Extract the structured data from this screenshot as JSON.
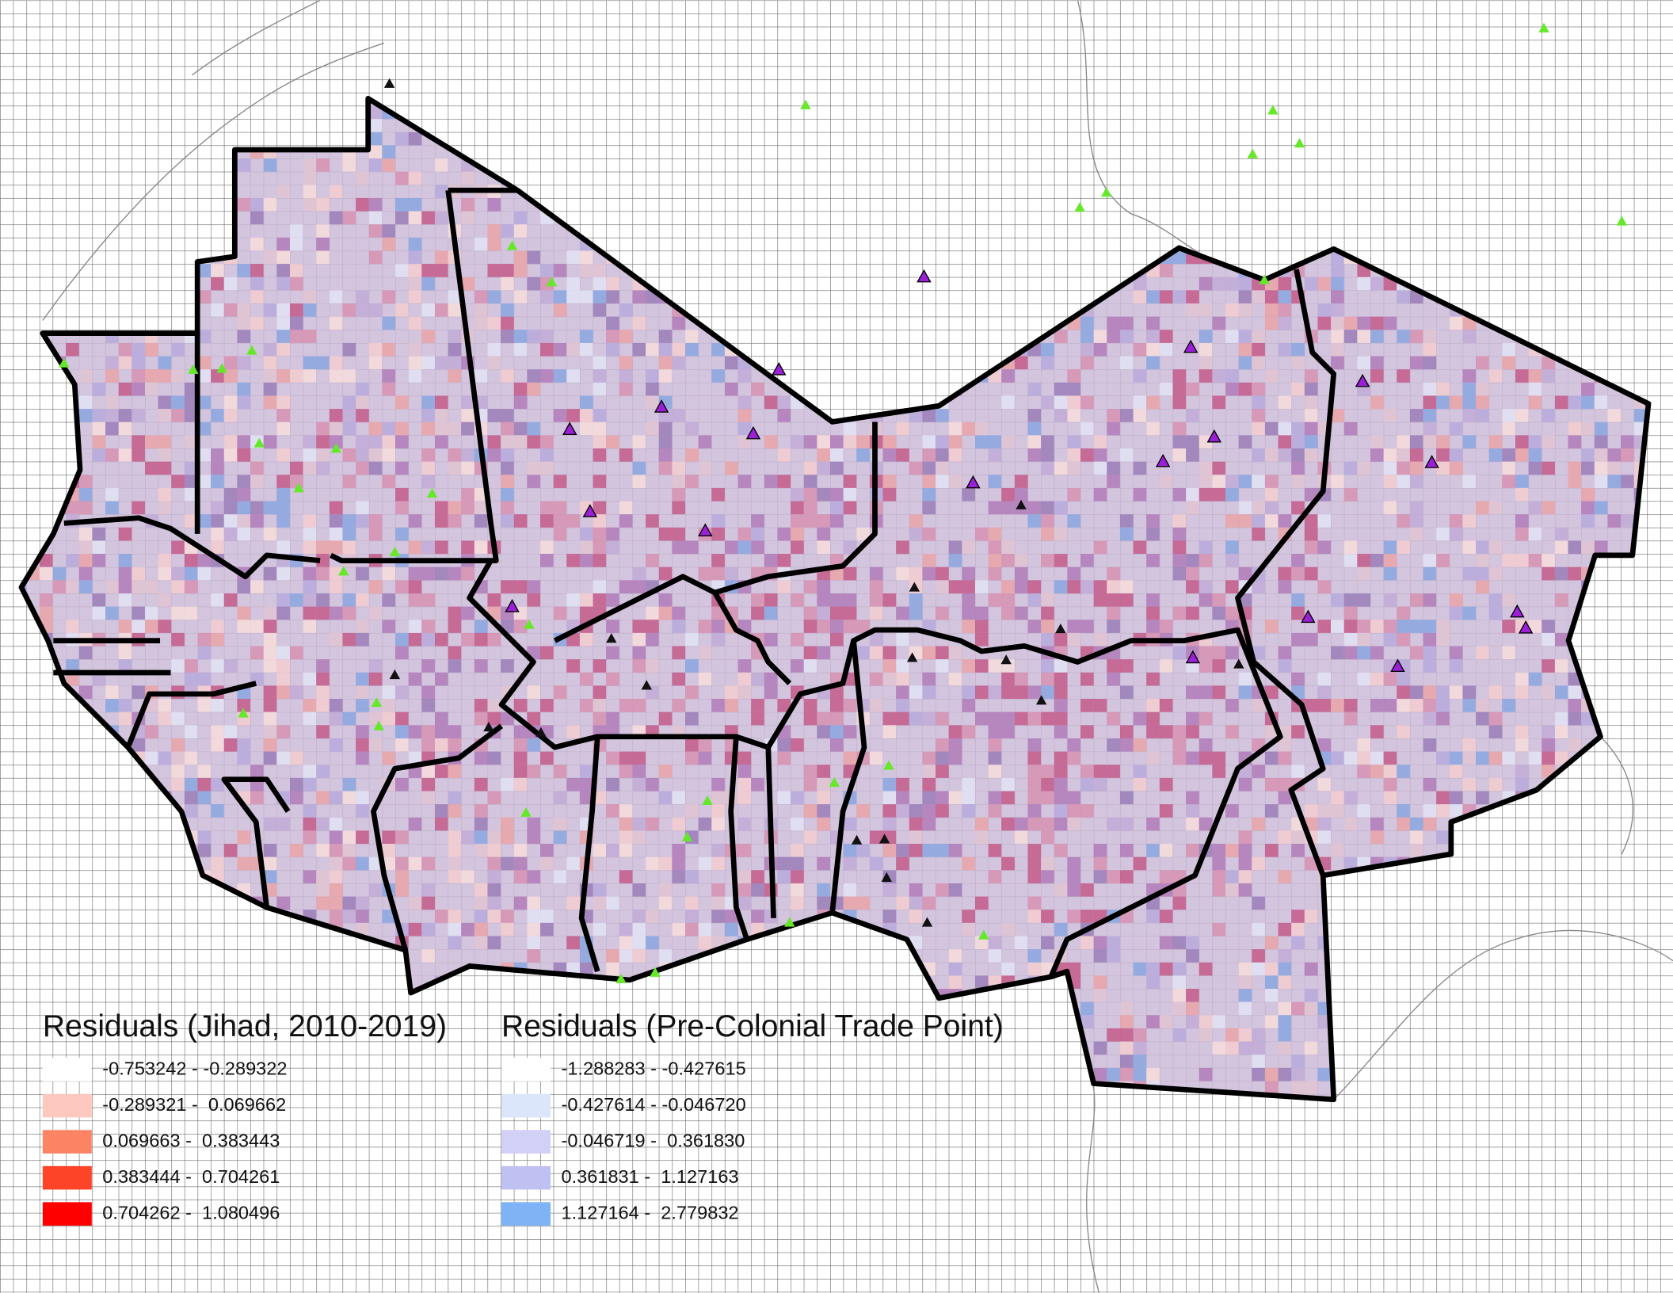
{
  "legends": [
    {
      "title": "Residuals (Jihad, 2010-2019)",
      "items": [
        {
          "label": "-0.753242 - -0.289322",
          "color": "#ffffff"
        },
        {
          "label": "-0.289321 -  0.069662",
          "color": "#fdc8c0"
        },
        {
          "label": "0.069663 -  0.383443",
          "color": "#fc8465"
        },
        {
          "label": "0.383444 -  0.704261",
          "color": "#fd4328"
        },
        {
          "label": "0.704262 -  1.080496",
          "color": "#fe0000"
        }
      ]
    },
    {
      "title": "Residuals (Pre-Colonial Trade Point)",
      "items": [
        {
          "label": "-1.288283 - -0.427615",
          "color": "#ffffff"
        },
        {
          "label": "-0.427614 - -0.046720",
          "color": "#dce6fb"
        },
        {
          "label": "-0.046719 -  0.361830",
          "color": "#d2d0f7"
        },
        {
          "label": "0.361831 -  1.127163",
          "color": "#bfc1f2"
        },
        {
          "label": "1.127164 -  2.779832",
          "color": "#7eb4f6"
        }
      ]
    }
  ]
}
